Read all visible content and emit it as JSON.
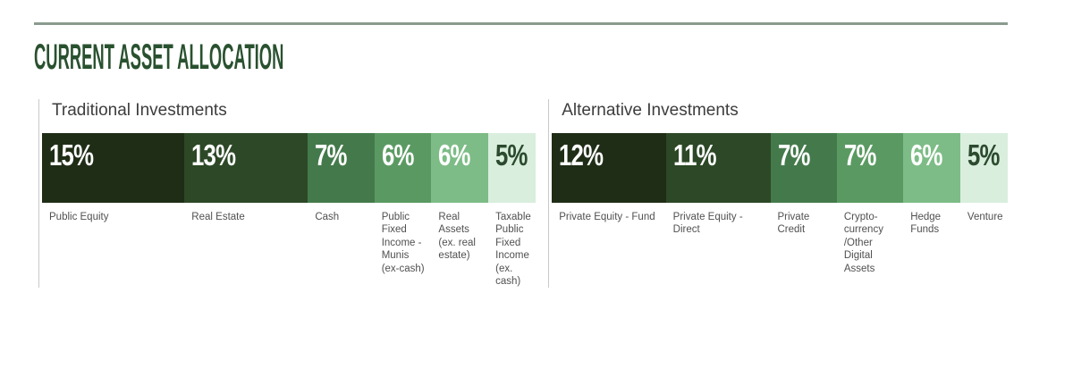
{
  "page": {
    "title": "CURRENT ASSET ALLOCATION"
  },
  "colors": {
    "title_green": "#29512f",
    "top_rule": "#8a9b8e",
    "group_header_text": "#3d3d3d",
    "divider_line": "#c9c9c9",
    "segment_label_text": "#505050",
    "palette_dark_to_light": [
      "#1f2d16",
      "#2c4826",
      "#447a4b",
      "#5a9a62",
      "#7dbc86",
      "#d9eedd"
    ]
  },
  "chart_data": {
    "type": "bar",
    "title": "CURRENT ASSET ALLOCATION",
    "layout": "two horizontal stacked proportional bars, shared scale, percent labels inside segments, category labels below",
    "groups": [
      {
        "label": "Traditional Investments",
        "total_percent": 52,
        "segments": [
          {
            "label": "Public Equity",
            "value": 15,
            "display": "15%",
            "color": "#1f2d16",
            "text_color": "#ffffff"
          },
          {
            "label": "Real Estate",
            "value": 13,
            "display": "13%",
            "color": "#2c4826",
            "text_color": "#ffffff"
          },
          {
            "label": "Cash",
            "value": 7,
            "display": "7%",
            "color": "#447a4b",
            "text_color": "#ffffff"
          },
          {
            "label": "Public Fixed Income - Munis (ex-cash)",
            "value": 6,
            "display": "6%",
            "color": "#5a9a62",
            "text_color": "#ffffff"
          },
          {
            "label": "Real Assets (ex. real estate)",
            "value": 6,
            "display": "6%",
            "color": "#7dbc86",
            "text_color": "#ffffff"
          },
          {
            "label": "Taxable Public Fixed Income (ex. cash)",
            "value": 5,
            "display": "5%",
            "color": "#d9eedd",
            "text_color": "#2b4a2e"
          }
        ]
      },
      {
        "label": "Alternative Investments",
        "total_percent": 48,
        "segments": [
          {
            "label": "Private Equity - Fund",
            "value": 12,
            "display": "12%",
            "color": "#1f2d16",
            "text_color": "#ffffff"
          },
          {
            "label": "Private Equity - Direct",
            "value": 11,
            "display": "11%",
            "color": "#2c4826",
            "text_color": "#ffffff"
          },
          {
            "label": "Private Credit",
            "value": 7,
            "display": "7%",
            "color": "#447a4b",
            "text_color": "#ffffff"
          },
          {
            "label": "Crypto-currency /Other Digital Assets",
            "value": 7,
            "display": "7%",
            "color": "#5a9a62",
            "text_color": "#ffffff"
          },
          {
            "label": "Hedge Funds",
            "value": 6,
            "display": "6%",
            "color": "#7dbc86",
            "text_color": "#ffffff"
          },
          {
            "label": "Venture",
            "value": 5,
            "display": "5%",
            "color": "#d9eedd",
            "text_color": "#2b4a2e"
          }
        ]
      }
    ]
  }
}
